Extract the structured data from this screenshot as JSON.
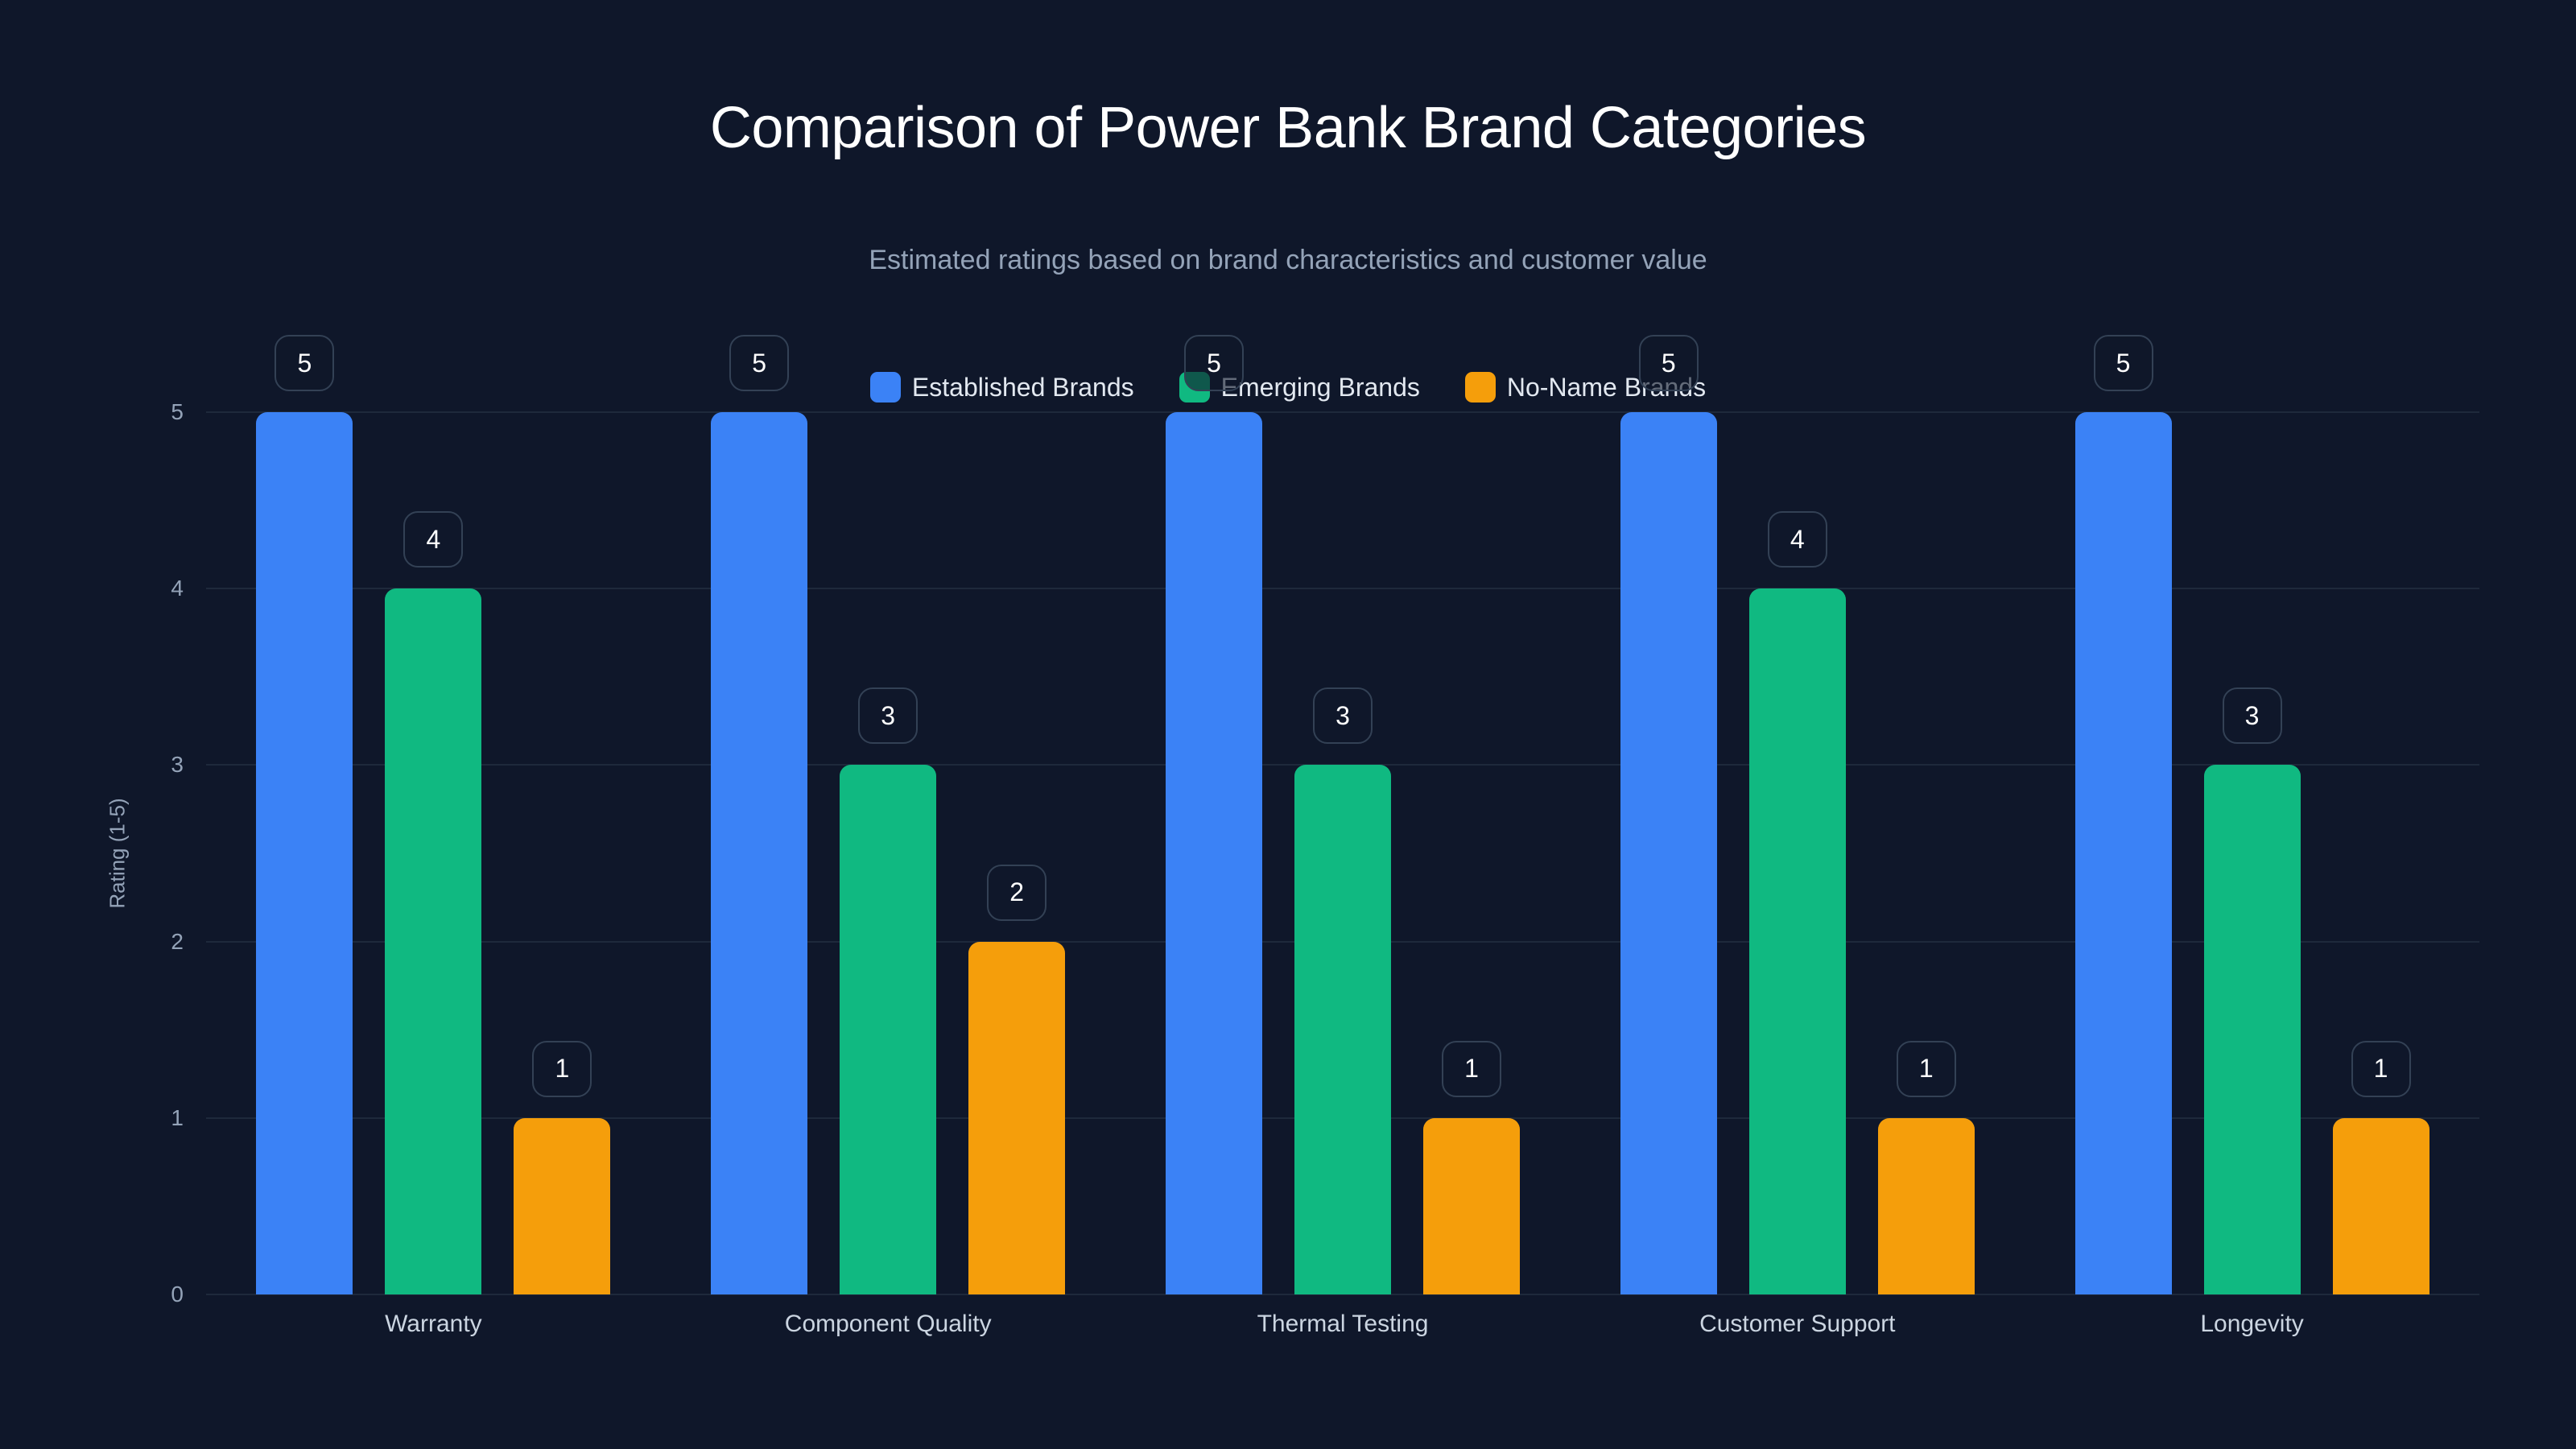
{
  "title": "Comparison of Power Bank Brand Categories",
  "subtitle": "Estimated ratings based on brand characteristics and customer value",
  "legend": [
    {
      "label": "Established Brands",
      "color": "#3b82f6"
    },
    {
      "label": "Emerging Brands",
      "color": "#10b981"
    },
    {
      "label": "No-Name Brands",
      "color": "#f59e0b"
    }
  ],
  "axes": {
    "y_title": "Rating (1-5)",
    "y_ticks": [
      "0",
      "1",
      "2",
      "3",
      "4",
      "5"
    ],
    "x_ticks": [
      "Warranty",
      "Component Quality",
      "Thermal Testing",
      "Customer Support",
      "Longevity"
    ]
  },
  "chart_data": {
    "type": "bar",
    "title": "Comparison of Power Bank Brand Categories",
    "subtitle": "Estimated ratings based on brand characteristics and customer value",
    "xlabel": "",
    "ylabel": "Rating (1-5)",
    "ylim": [
      0,
      5
    ],
    "grid": true,
    "legend_position": "top-center",
    "categories": [
      "Warranty",
      "Component Quality",
      "Thermal Testing",
      "Customer Support",
      "Longevity"
    ],
    "series": [
      {
        "name": "Established Brands",
        "color": "#3b82f6",
        "values": [
          5,
          5,
          5,
          5,
          5
        ]
      },
      {
        "name": "Emerging Brands",
        "color": "#10b981",
        "values": [
          4,
          3,
          3,
          4,
          3
        ]
      },
      {
        "name": "No-Name Brands",
        "color": "#f59e0b",
        "values": [
          1,
          2,
          1,
          1,
          1
        ]
      }
    ]
  }
}
